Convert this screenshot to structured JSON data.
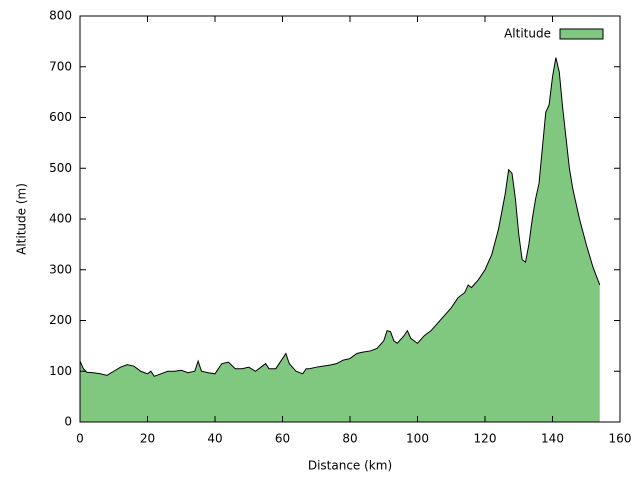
{
  "chart_data": {
    "type": "area",
    "xlabel": "Distance (km)",
    "ylabel": "Altitude (m)",
    "x": [
      0,
      1,
      2,
      4,
      6,
      8,
      10,
      12,
      14,
      16,
      18,
      20,
      21,
      22,
      24,
      26,
      28,
      30,
      32,
      34,
      35,
      36,
      38,
      40,
      42,
      44,
      46,
      48,
      50,
      52,
      54,
      55,
      56,
      58,
      60,
      61,
      62,
      64,
      66,
      67,
      68,
      70,
      72,
      74,
      76,
      78,
      80,
      82,
      84,
      86,
      88,
      90,
      91,
      92,
      93,
      94,
      96,
      97,
      98,
      100,
      102,
      104,
      106,
      108,
      110,
      112,
      114,
      115,
      116,
      118,
      120,
      122,
      124,
      126,
      127,
      128,
      129,
      130,
      131,
      132,
      133,
      134,
      135,
      136,
      137,
      138,
      139,
      140,
      141,
      142,
      143,
      144,
      145,
      146,
      148,
      150,
      152,
      154
    ],
    "series": [
      {
        "name": "Altitude",
        "color": "#80c880",
        "values": [
          120,
          105,
          98,
          97,
          95,
          92,
          100,
          108,
          113,
          110,
          100,
          95,
          100,
          90,
          95,
          100,
          100,
          102,
          97,
          100,
          120,
          100,
          97,
          95,
          115,
          118,
          105,
          105,
          108,
          100,
          110,
          115,
          105,
          105,
          125,
          135,
          115,
          100,
          95,
          105,
          105,
          108,
          110,
          112,
          115,
          122,
          125,
          135,
          138,
          140,
          145,
          160,
          180,
          178,
          160,
          155,
          170,
          180,
          165,
          155,
          170,
          180,
          195,
          210,
          225,
          245,
          255,
          270,
          265,
          280,
          300,
          330,
          380,
          450,
          497,
          490,
          440,
          370,
          320,
          315,
          350,
          400,
          440,
          470,
          540,
          610,
          625,
          680,
          718,
          690,
          620,
          560,
          500,
          460,
          400,
          350,
          305,
          270
        ]
      }
    ],
    "xlim": [
      0,
      160
    ],
    "xticks": [
      0,
      20,
      40,
      60,
      80,
      100,
      120,
      140,
      160
    ],
    "ylim": [
      0,
      800
    ],
    "yticks": [
      0,
      100,
      200,
      300,
      400,
      500,
      600,
      700,
      800
    ],
    "legend": "top-right"
  }
}
